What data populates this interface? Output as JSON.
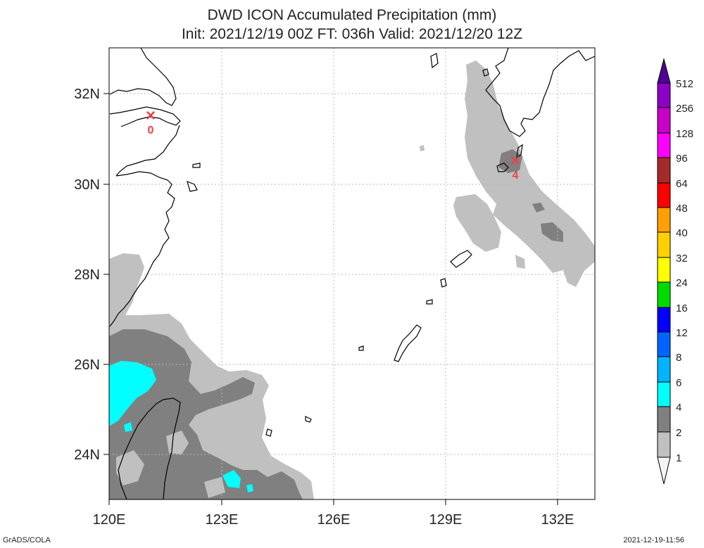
{
  "header": {
    "title": "DWD ICON Accumulated Precipitation (mm)",
    "subtitle": "Init: 2021/12/19 00Z  FT: 036h  Valid: 2021/12/20 12Z"
  },
  "map": {
    "lon_range": [
      120,
      133
    ],
    "lat_range": [
      23,
      33
    ],
    "lon_ticks": [
      "120E",
      "123E",
      "126E",
      "129E",
      "132E"
    ],
    "lat_ticks": [
      "24N",
      "26N",
      "28N",
      "30N",
      "32N"
    ],
    "markers": [
      {
        "symbol": "×",
        "value": "0",
        "lon": 121.1,
        "lat": 31.5,
        "color": "#e8434a"
      },
      {
        "symbol": "×",
        "value": "4",
        "lon": 130.9,
        "lat": 30.5,
        "color": "#e8434a"
      }
    ]
  },
  "legend": {
    "levels": [
      "1",
      "2",
      "4",
      "6",
      "8",
      "12",
      "16",
      "24",
      "32",
      "40",
      "48",
      "64",
      "96",
      "128",
      "256",
      "512"
    ],
    "colors": [
      "#f4f4f4",
      "#c0c0c0",
      "#808080",
      "#00ffff",
      "#00b4ff",
      "#0064ff",
      "#0000ff",
      "#00dc00",
      "#ffff00",
      "#ffd000",
      "#ffa000",
      "#ff0000",
      "#a52a2a",
      "#ff00ff",
      "#c800c8",
      "#8c00c8",
      "#500096"
    ]
  },
  "footer": {
    "left": "GrADS/COLA",
    "right": "2021-12-19-11:56"
  }
}
